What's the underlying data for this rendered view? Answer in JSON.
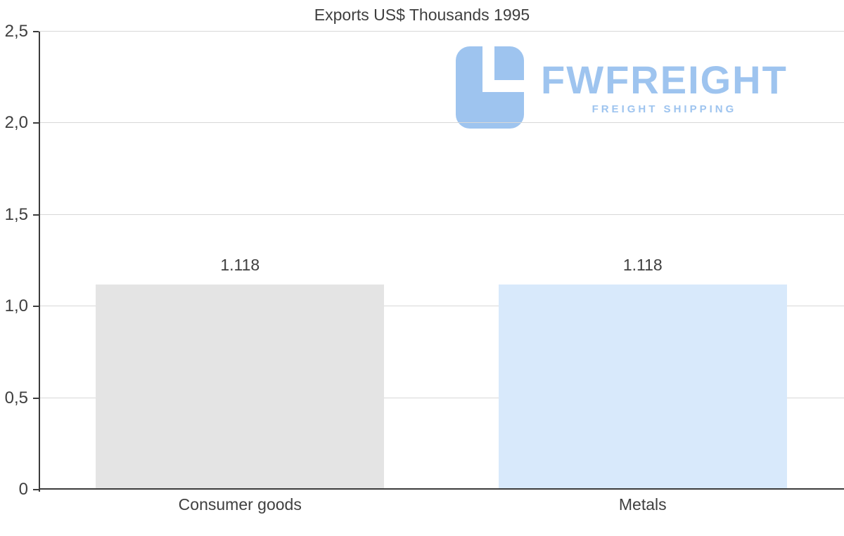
{
  "chart_data": {
    "type": "bar",
    "title": "Exports US$ Thousands 1995",
    "categories": [
      "Consumer goods",
      "Metals"
    ],
    "values": [
      1.118,
      1.118
    ],
    "value_labels": [
      "1.118",
      "1.118"
    ],
    "series": [
      {
        "name": "Exports",
        "values": [
          1.118,
          1.118
        ]
      }
    ],
    "bar_colors": [
      "#e4e4e4",
      "#d8e9fb"
    ],
    "xlabel": "",
    "ylabel": "",
    "ylim": [
      0,
      2.5
    ],
    "yticks": [
      0,
      0.5,
      1.0,
      1.5,
      2.0,
      2.5
    ],
    "ytick_labels": [
      "0",
      "0,5",
      "1,0",
      "1,5",
      "2,0",
      "2,5"
    ],
    "grid": true,
    "legend": "none"
  },
  "watermark": {
    "brand": "FWFREIGHT",
    "tagline": "FREIGHT SHIPPING",
    "color": "#9ec4ef"
  },
  "colors": {
    "background": "#ffffff",
    "axis": "#3c3c3c",
    "gridline": "#d8d8d8",
    "text": "#3f3f3f"
  }
}
